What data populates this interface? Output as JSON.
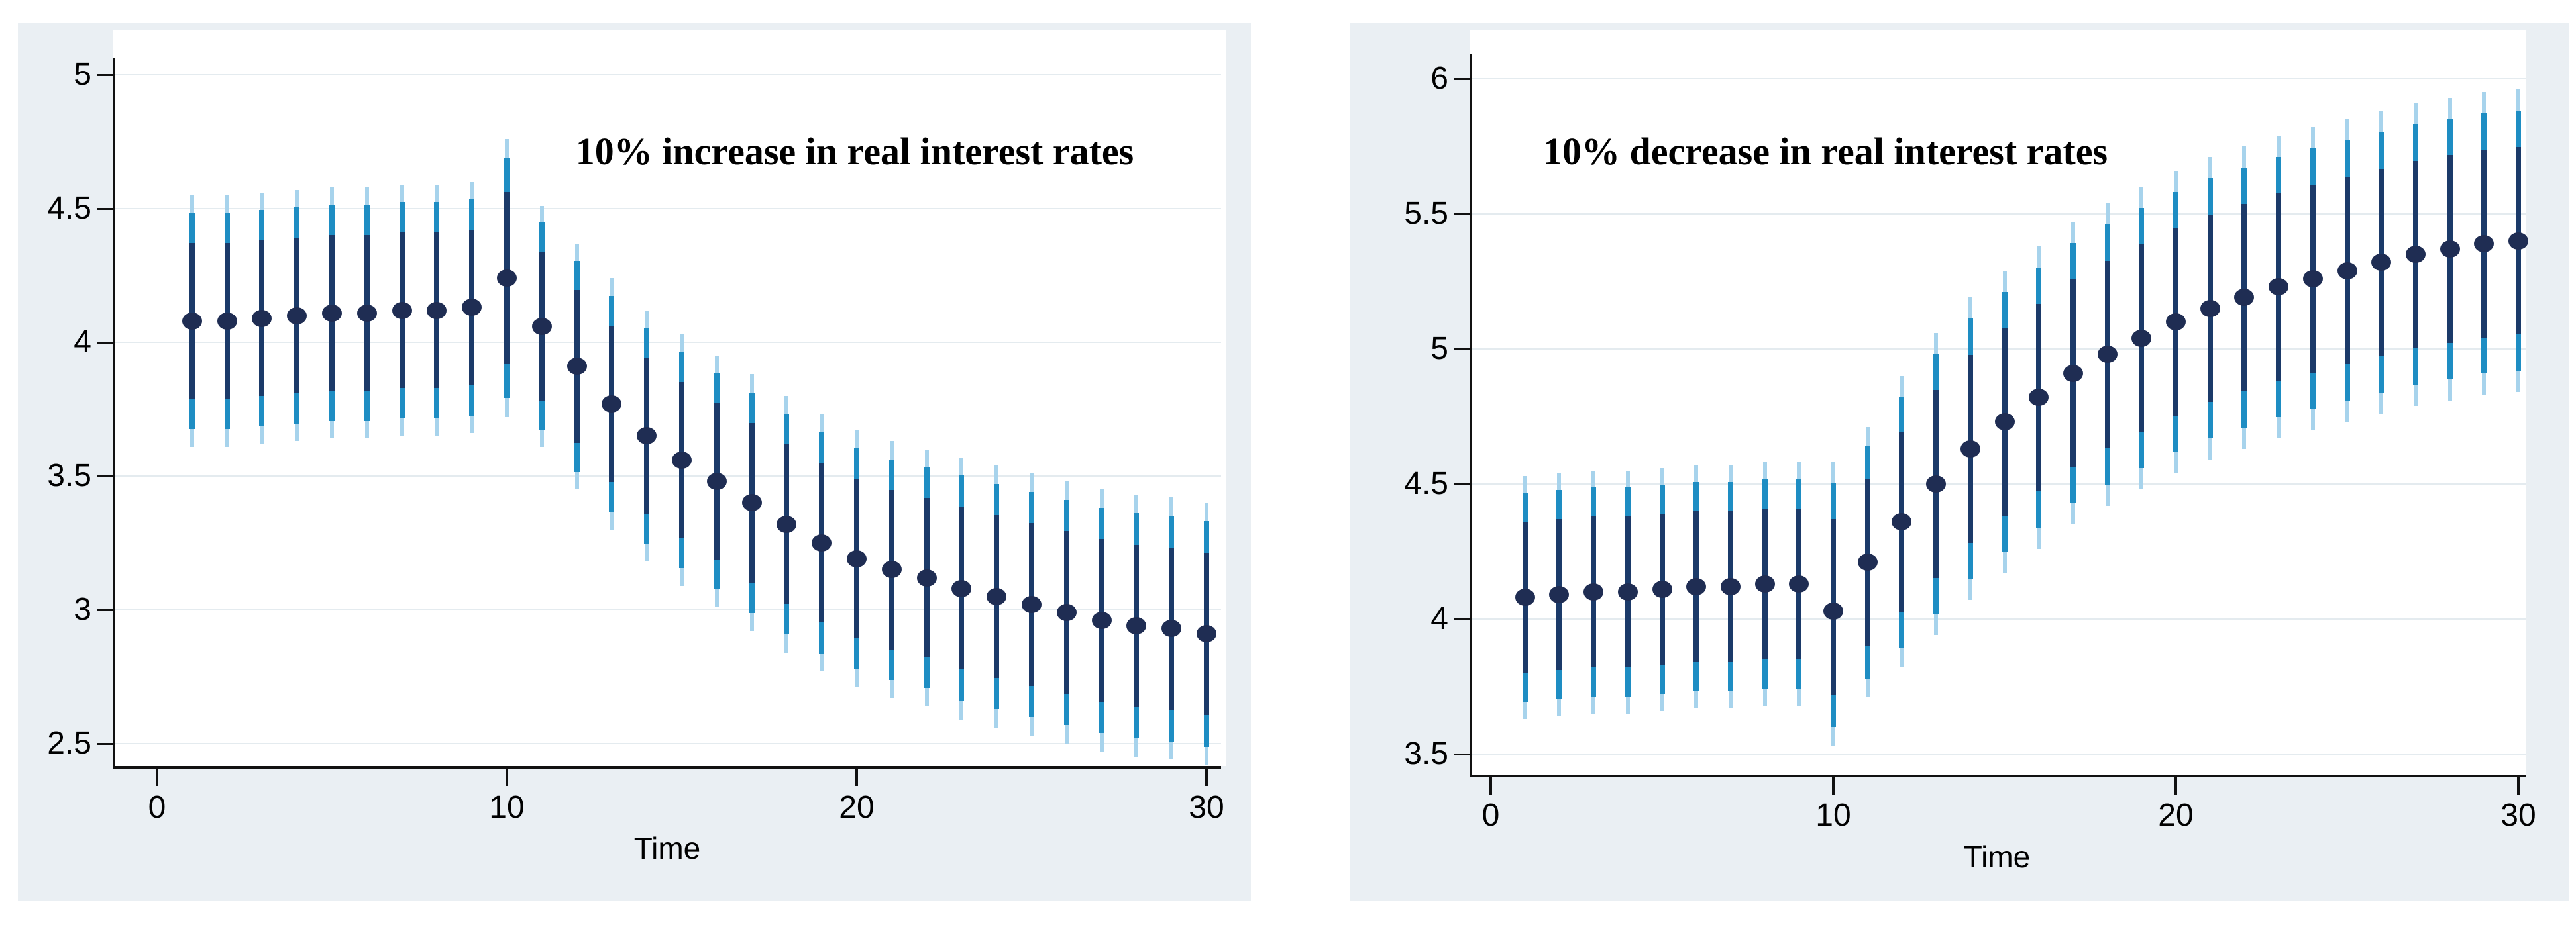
{
  "page": {
    "background": "#ffffff",
    "panel_background": "#eaeff3",
    "plot_background": "#ffffff"
  },
  "style": {
    "dot_color": "#1f2d53",
    "ci_inner_color": "#1b3a69",
    "ci_mid_color": "#1e8dc3",
    "ci_outer_color": "#a7d3ec",
    "gridline_color": "#e4ebef",
    "axis_color": "#111111"
  },
  "chart_data": [
    {
      "type": "scatter",
      "subtype": "point-estimates-with-nested-confidence-bars",
      "title": "10% increase in real interest rates",
      "xlabel": "Time",
      "ylabel": "",
      "legend": "none",
      "grid": true,
      "xlim": [
        0,
        30.5
      ],
      "ylim": [
        2.35,
        5.1
      ],
      "x_ticks": [
        0,
        10,
        20,
        30
      ],
      "y_ticks": [
        5,
        4.5,
        4,
        3.5,
        3,
        2.5
      ],
      "x": [
        1,
        2,
        3,
        4,
        5,
        6,
        7,
        8,
        9,
        10,
        11,
        12,
        13,
        14,
        15,
        16,
        17,
        18,
        19,
        20,
        21,
        22,
        23,
        24,
        25,
        26,
        27,
        28,
        29,
        30
      ],
      "values": [
        4.08,
        4.08,
        4.09,
        4.1,
        4.11,
        4.11,
        4.12,
        4.12,
        4.13,
        4.24,
        4.06,
        3.91,
        3.77,
        3.65,
        3.56,
        3.48,
        3.4,
        3.32,
        3.25,
        3.19,
        3.15,
        3.12,
        3.08,
        3.05,
        3.02,
        2.99,
        2.96,
        2.94,
        2.93,
        2.91
      ],
      "ci_low": [
        3.61,
        3.61,
        3.62,
        3.63,
        3.64,
        3.64,
        3.65,
        3.65,
        3.66,
        3.72,
        3.61,
        3.45,
        3.3,
        3.18,
        3.09,
        3.01,
        2.92,
        2.84,
        2.77,
        2.71,
        2.67,
        2.64,
        2.59,
        2.56,
        2.53,
        2.5,
        2.47,
        2.45,
        2.44,
        2.42
      ],
      "ci_high": [
        4.55,
        4.55,
        4.56,
        4.57,
        4.58,
        4.58,
        4.59,
        4.59,
        4.6,
        4.76,
        4.51,
        4.37,
        4.24,
        4.12,
        4.03,
        3.95,
        3.88,
        3.8,
        3.73,
        3.67,
        3.63,
        3.6,
        3.57,
        3.54,
        3.51,
        3.48,
        3.45,
        3.43,
        3.42,
        3.4
      ]
    },
    {
      "type": "scatter",
      "subtype": "point-estimates-with-nested-confidence-bars",
      "title": "10% decrease in real interest rates",
      "xlabel": "Time",
      "ylabel": "",
      "legend": "none",
      "grid": true,
      "xlim": [
        0,
        30.5
      ],
      "ylim": [
        3.45,
        6.1
      ],
      "x_ticks": [
        0,
        10,
        20,
        30
      ],
      "y_ticks": [
        6,
        5.5,
        5,
        4.5,
        4,
        3.5
      ],
      "x": [
        1,
        2,
        3,
        4,
        5,
        6,
        7,
        8,
        9,
        10,
        11,
        12,
        13,
        14,
        15,
        16,
        17,
        18,
        19,
        20,
        21,
        22,
        23,
        24,
        25,
        26,
        27,
        28,
        29,
        30
      ],
      "values": [
        4.08,
        4.09,
        4.1,
        4.1,
        4.11,
        4.12,
        4.12,
        4.13,
        4.13,
        4.03,
        4.21,
        4.36,
        4.5,
        4.63,
        4.73,
        4.82,
        4.91,
        4.98,
        5.04,
        5.1,
        5.15,
        5.19,
        5.23,
        5.26,
        5.29,
        5.32,
        5.35,
        5.37,
        5.39,
        5.4
      ],
      "ci_low": [
        3.63,
        3.64,
        3.65,
        3.65,
        3.66,
        3.67,
        3.67,
        3.68,
        3.68,
        3.53,
        3.71,
        3.82,
        3.94,
        4.07,
        4.17,
        4.26,
        4.35,
        4.42,
        4.48,
        4.54,
        4.59,
        4.63,
        4.67,
        4.7,
        4.73,
        4.76,
        4.79,
        4.81,
        4.83,
        4.84
      ],
      "ci_high": [
        4.53,
        4.54,
        4.55,
        4.55,
        4.56,
        4.57,
        4.57,
        4.58,
        4.58,
        4.58,
        4.71,
        4.9,
        5.06,
        5.19,
        5.29,
        5.38,
        5.47,
        5.54,
        5.6,
        5.66,
        5.71,
        5.75,
        5.79,
        5.82,
        5.85,
        5.88,
        5.91,
        5.93,
        5.95,
        5.96
      ]
    }
  ]
}
